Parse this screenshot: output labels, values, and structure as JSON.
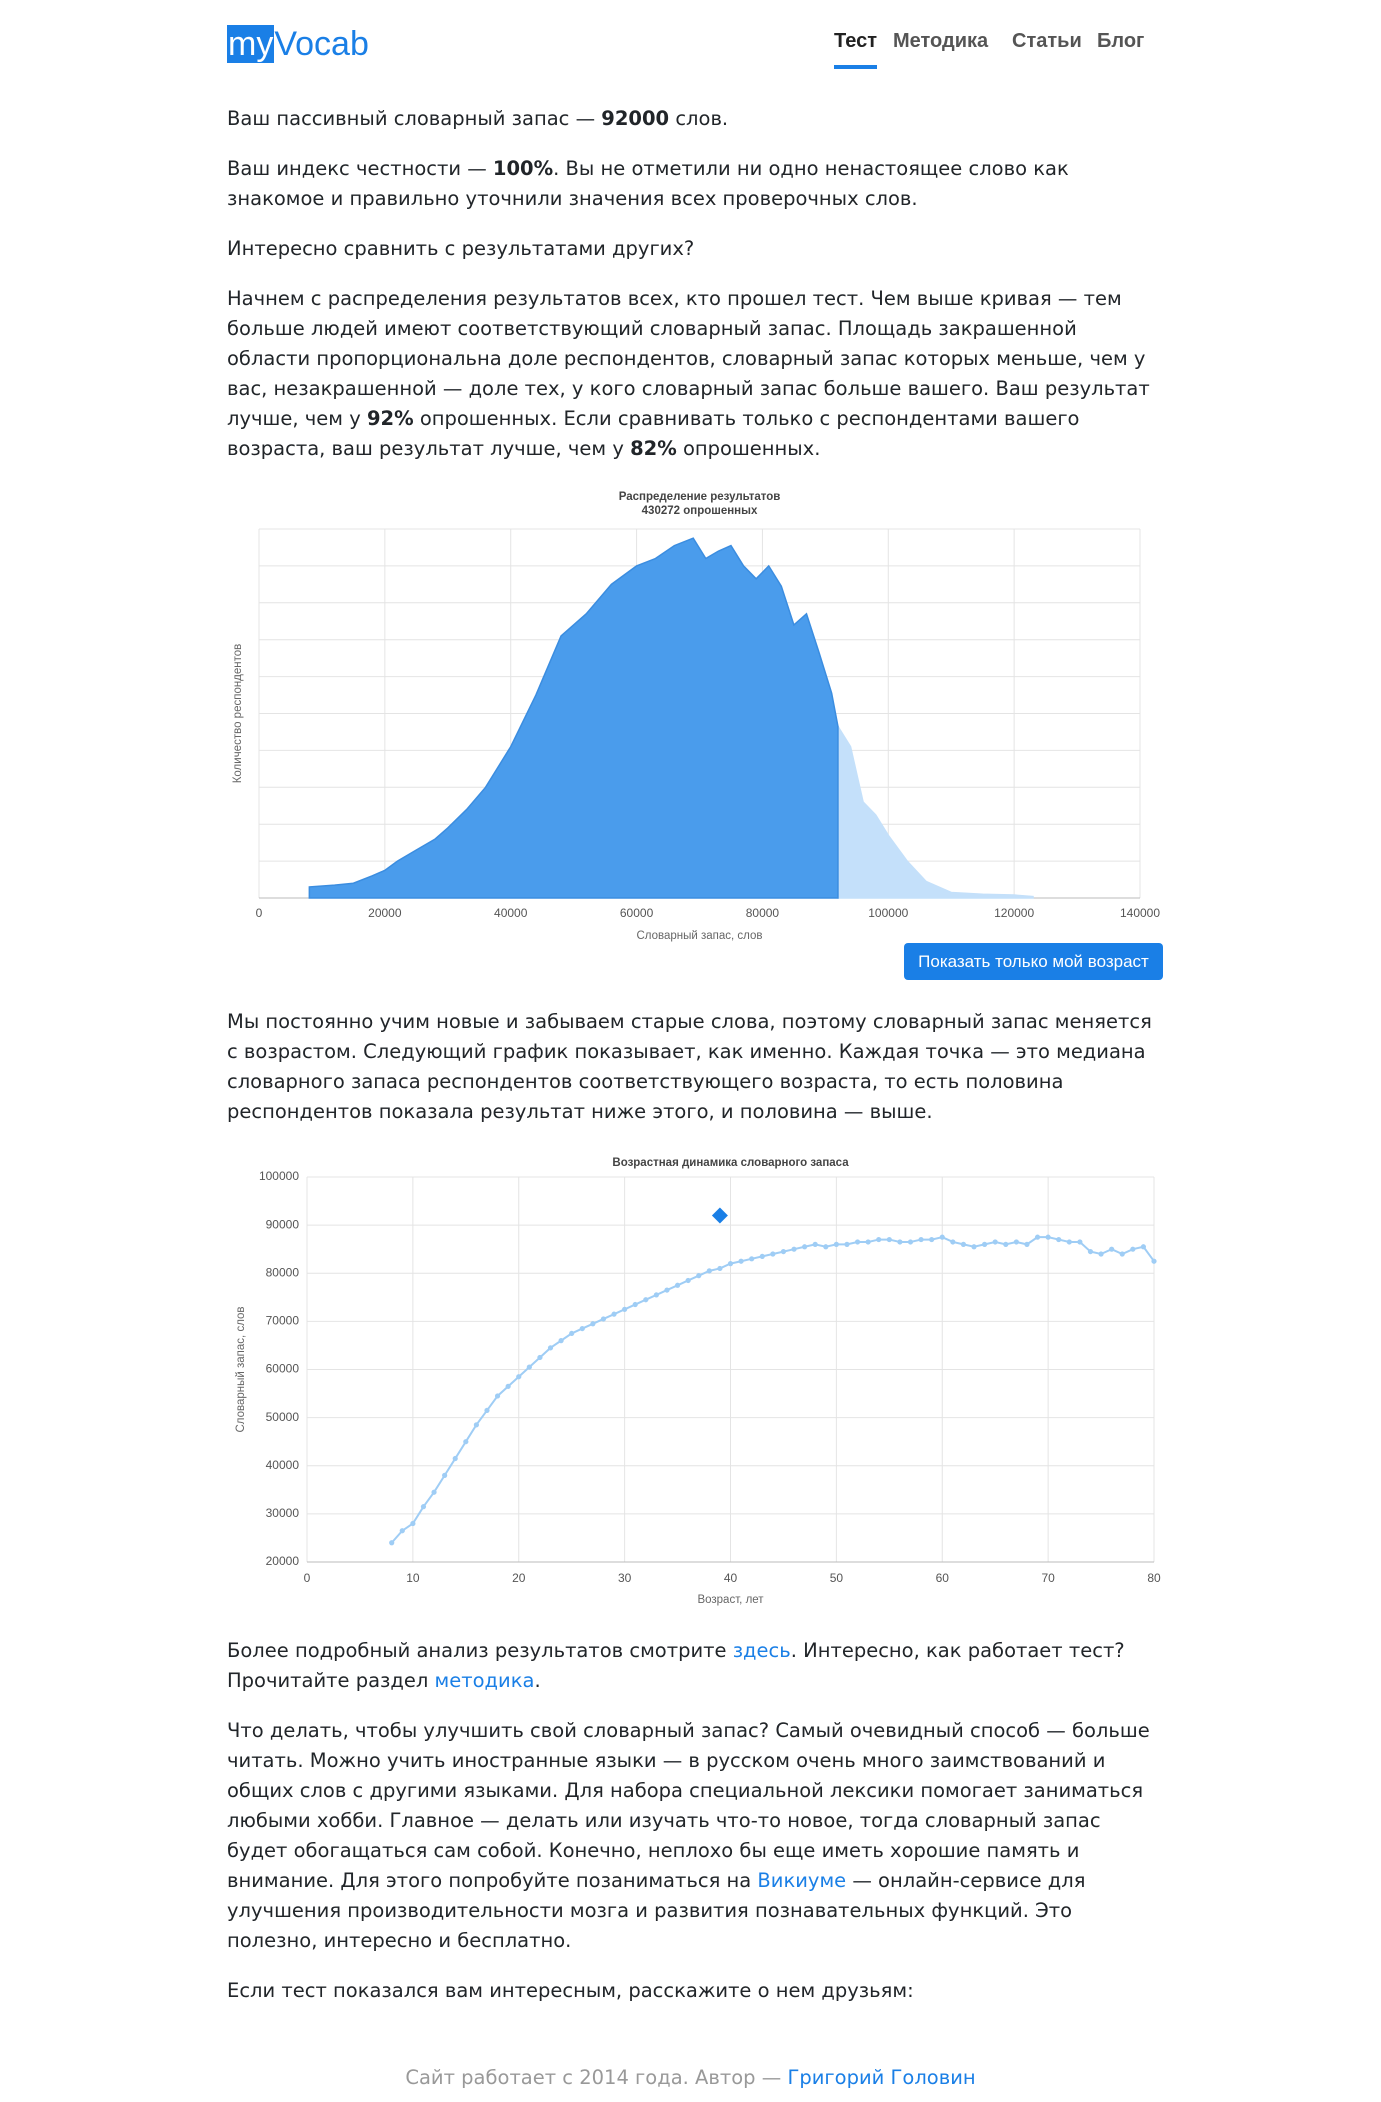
{
  "header": {
    "logo_a": "my",
    "logo_b": "Vocab",
    "nav": [
      "Тест",
      "Методика",
      "Статьи",
      "Блог"
    ]
  },
  "paragraphs": [
    [
      "Ваш пассивный словарный запас — ",
      "92000",
      " слов."
    ],
    [
      "Ваш индекс честности — ",
      "100%",
      ". Вы не отметили ни одно ненастоящее слово как знакомое и правильно уточнили значения всех проверочных слов."
    ],
    [
      "Интересно сравнить с результатами других?"
    ],
    [
      "Начнем с распределения результатов всех, кто прошел тест. Чем выше кривая — тем больше людей имеют соответствующий словарный запас. Площадь закрашенной области пропорциональна доле респондентов, словарный запас которых меньше, чем у вас, незакрашенной — доле тех, у кого словарный запас больше вашего. Ваш результат лучше, чем у ",
      "92%",
      " опрошенных. Если сравнивать только с респондентами вашего возраста, ваш результат лучше, чем у ",
      "82%",
      " опрошенных."
    ],
    [
      "Мы постоянно учим новые и забываем старые слова, поэтому словарный запас меняется с возрастом. Следующий график показывает, как именно. Каждая точка — это медиана словарного запаса респондентов соответствующего возраста, то есть половина респондентов показала результат ниже этого, и половина — выше."
    ],
    [
      "Более подробный анализ результатов смотрите ",
      "здесь",
      ". Интересно, как работает тест? Прочитайте раздел ",
      "методика",
      "."
    ],
    [
      "Что делать, чтобы улучшить свой словарный запас? Самый очевидный способ — больше читать. Можно учить иностранные языки — в русском очень много заимствований и общих слов с другими языками. Для набора специальной лексики помогает заниматься любыми хобби. Главное — делать или изучать что-то новое, тогда словарный запас будет обогащаться сам собой. Конечно, неплохо бы еще иметь хорошие память и внимание. Для этого попробуйте позаниматься на ",
      "Викиуме",
      " — онлайн-сервисе для улучшения производительности мозга и развития познавательных функций. Это полезно, интересно и бесплатно."
    ],
    [
      "Если тест показался вам интересным, расскажите о нем друзьям:"
    ]
  ],
  "button": "Показать только мой возраст",
  "footer": [
    "Сайт работает с 2014 года. Автор — ",
    "Григорий Головин"
  ],
  "chart_data": [
    {
      "type": "area",
      "title": "Распределение результатов",
      "subtitle": "430272 опрошенных",
      "x_label": "Словарный запас, слов",
      "y_label": "Количество респондентов",
      "x": [
        8000,
        12000,
        15000,
        18000,
        20000,
        22000,
        25000,
        28000,
        30000,
        33000,
        36000,
        40000,
        44000,
        48000,
        52000,
        56000,
        60000,
        63000,
        66000,
        69000,
        71000,
        73000,
        75000,
        77000,
        79000,
        81000,
        83000,
        85000,
        87000,
        89000,
        91000,
        92000,
        94000,
        96000,
        98000,
        100000,
        103000,
        106000,
        110000,
        115000,
        120000,
        123000
      ],
      "values": [
        0.3,
        0.35,
        0.4,
        0.6,
        0.75,
        1.0,
        1.3,
        1.6,
        1.9,
        2.4,
        3.0,
        4.1,
        5.5,
        7.1,
        7.7,
        8.5,
        9.0,
        9.2,
        9.55,
        9.75,
        9.2,
        9.4,
        9.55,
        9.0,
        8.65,
        9.0,
        8.45,
        7.4,
        7.7,
        6.65,
        5.55,
        4.65,
        4.1,
        2.6,
        2.25,
        1.7,
        1.0,
        0.45,
        0.15,
        0.1,
        0.08,
        0.04
      ],
      "highlight_to": 92000,
      "color": "#4a9cec",
      "rest_color": "#c4e0fa",
      "xlim": [
        0,
        140000
      ],
      "xticks": [
        0,
        20000,
        40000,
        60000,
        80000,
        100000,
        120000,
        140000
      ],
      "ylim": [
        0,
        10
      ],
      "ygrid": [
        0,
        1,
        2,
        3,
        4,
        5,
        6,
        7,
        8,
        9,
        10
      ],
      "grid": true
    },
    {
      "type": "line",
      "title": "Возрастная динамика словарного запаса",
      "x_label": "Возраст, лет",
      "y_label": "Словарный запас, слов",
      "x": [
        8,
        9,
        10,
        11,
        12,
        13,
        14,
        15,
        16,
        17,
        18,
        19,
        20,
        21,
        22,
        23,
        24,
        25,
        26,
        27,
        28,
        29,
        30,
        31,
        32,
        33,
        34,
        35,
        36,
        37,
        38,
        39,
        40,
        41,
        42,
        43,
        44,
        45,
        46,
        47,
        48,
        49,
        50,
        51,
        52,
        53,
        54,
        55,
        56,
        57,
        58,
        59,
        60,
        61,
        62,
        63,
        64,
        65,
        66,
        67,
        68,
        69,
        70,
        71,
        72,
        73,
        74,
        75,
        76,
        77,
        78,
        79,
        80
      ],
      "values": [
        24000,
        26500,
        28000,
        31500,
        34500,
        38000,
        41500,
        45000,
        48500,
        51500,
        54500,
        56500,
        58500,
        60500,
        62500,
        64500,
        66000,
        67500,
        68500,
        69500,
        70500,
        71500,
        72500,
        73500,
        74500,
        75500,
        76500,
        77500,
        78500,
        79500,
        80500,
        81000,
        82000,
        82500,
        83000,
        83500,
        84000,
        84500,
        85000,
        85500,
        86000,
        85500,
        86000,
        86000,
        86500,
        86500,
        87000,
        87000,
        86500,
        86500,
        87000,
        87000,
        87500,
        86500,
        86000,
        85500,
        86000,
        86500,
        86000,
        86500,
        86000,
        87500,
        87500,
        87000,
        86500,
        86500,
        84500,
        84000,
        85000,
        84000,
        85000,
        85500,
        82500
      ],
      "color": "#9fcdf5",
      "marker": {
        "x": 39,
        "y": 92000,
        "color": "#1a7fe6"
      },
      "xlim": [
        0,
        80
      ],
      "xticks": [
        0,
        10,
        20,
        30,
        40,
        50,
        60,
        70,
        80
      ],
      "ylim": [
        20000,
        100000
      ],
      "yticks": [
        20000,
        30000,
        40000,
        50000,
        60000,
        70000,
        80000,
        90000,
        100000
      ],
      "grid": true
    }
  ]
}
